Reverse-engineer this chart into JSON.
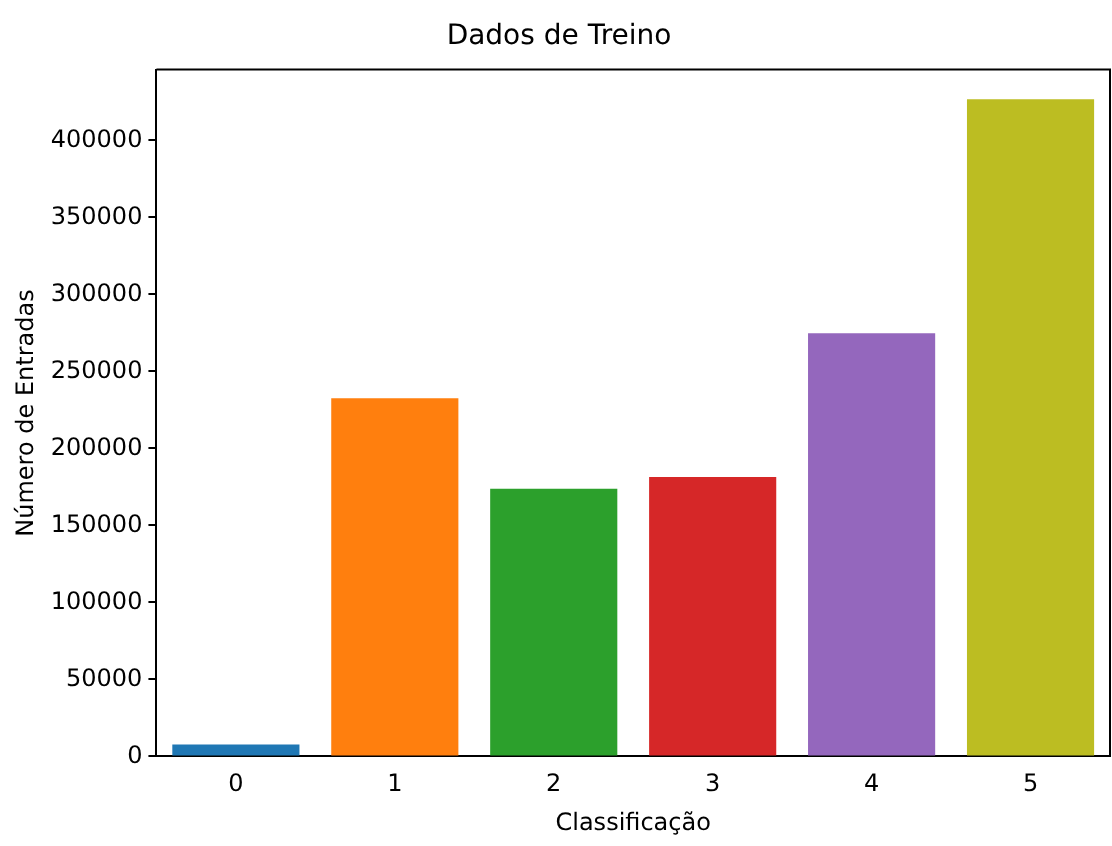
{
  "chart_data": {
    "type": "bar",
    "title": "Dados de Treino",
    "xlabel": "Classificação",
    "ylabel": "Número de Entradas",
    "categories": [
      "0",
      "1",
      "2",
      "3",
      "4",
      "5"
    ],
    "values": [
      7700,
      232600,
      173800,
      181500,
      274800,
      426800
    ],
    "colors": [
      "#1f77b4",
      "#ff7f0e",
      "#2ca02c",
      "#d62728",
      "#9467bd",
      "#bcbd22"
    ],
    "ylim": [
      0,
      446000
    ],
    "yticks": [
      0,
      50000,
      100000,
      150000,
      200000,
      250000,
      300000,
      350000,
      400000
    ],
    "grid": false,
    "legend": false
  }
}
